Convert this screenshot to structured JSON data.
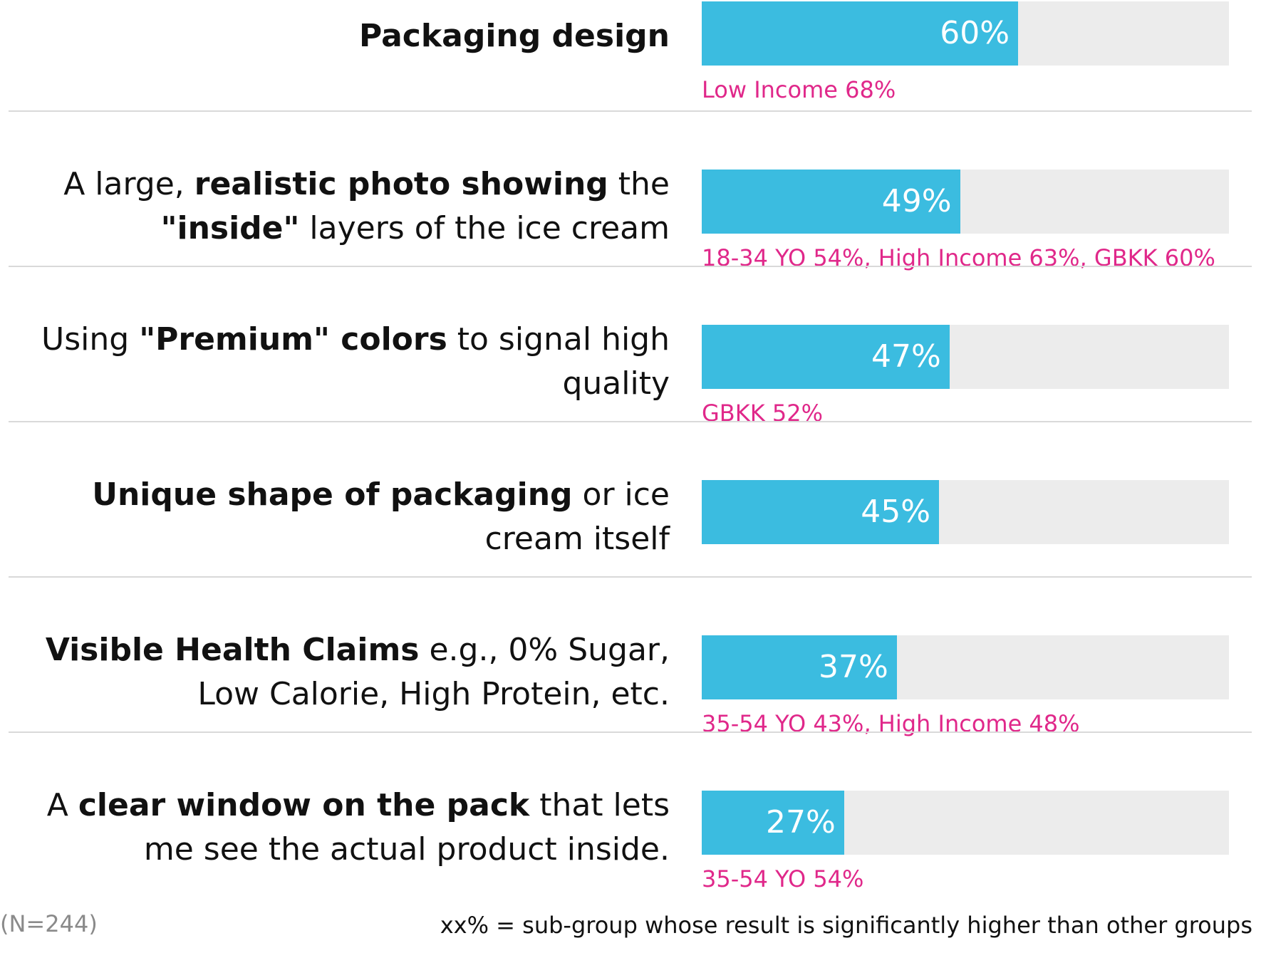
{
  "chart_data": {
    "type": "bar",
    "orientation": "horizontal",
    "xlim": [
      0,
      100
    ],
    "categories": [
      "Packaging design",
      "A large, realistic photo showing the \"inside\" layers of the ice cream",
      "Using \"Premium\" colors to signal high quality",
      "Unique shape of packaging or ice cream itself",
      "Visible Health Claims e.g., 0% Sugar, Low Calorie, High Protein, etc.",
      "A clear window on the pack that lets me see the actual product inside."
    ],
    "values": [
      60,
      49,
      47,
      45,
      37,
      27
    ],
    "value_labels": [
      "60%",
      "49%",
      "47%",
      "45%",
      "37%",
      "27%"
    ],
    "subgroup_labels": [
      "Low Income 68%",
      "18-34 YO 54%, High Income 63%, GBKK 60%",
      "GBKK 52%",
      "",
      "35-54 YO 43%, High Income 48%",
      "35-54 YO 54%"
    ],
    "colors": {
      "bar": "#3bbce0",
      "track": "#ececec",
      "subgroup": "#e0288a"
    },
    "grid": false
  },
  "label_parts": [
    [
      [
        {
          "t": "Packaging design",
          "b": true
        }
      ]
    ],
    [
      [
        {
          "t": "A large, ",
          "b": false
        },
        {
          "t": "realistic photo showing",
          "b": true
        },
        {
          "t": " the",
          "b": false
        }
      ],
      [
        {
          "t": "\"inside\"",
          "b": true
        },
        {
          "t": " layers of the ice cream",
          "b": false
        }
      ]
    ],
    [
      [
        {
          "t": "Using ",
          "b": false
        },
        {
          "t": "\"Premium\" colors",
          "b": true
        },
        {
          "t": " to signal high",
          "b": false
        }
      ],
      [
        {
          "t": "quality",
          "b": false
        }
      ]
    ],
    [
      [
        {
          "t": "Unique shape of packaging",
          "b": true
        },
        {
          "t": " or ice",
          "b": false
        }
      ],
      [
        {
          "t": "cream itself",
          "b": false
        }
      ]
    ],
    [
      [
        {
          "t": "Visible Health Claims",
          "b": true
        },
        {
          "t": " e.g., 0% Sugar,",
          "b": false
        }
      ],
      [
        {
          "t": "Low Calorie, High Protein, etc.",
          "b": false
        }
      ]
    ],
    [
      [
        {
          "t": "A ",
          "b": false
        },
        {
          "t": "clear window on the pack",
          "b": true
        },
        {
          "t": " that lets",
          "b": false
        }
      ],
      [
        {
          "t": "me see the actual product inside.",
          "b": false
        }
      ]
    ]
  ],
  "notes": {
    "sample": "(N=244)",
    "key": "xx% = sub-group whose result is significantly higher than other groups"
  }
}
